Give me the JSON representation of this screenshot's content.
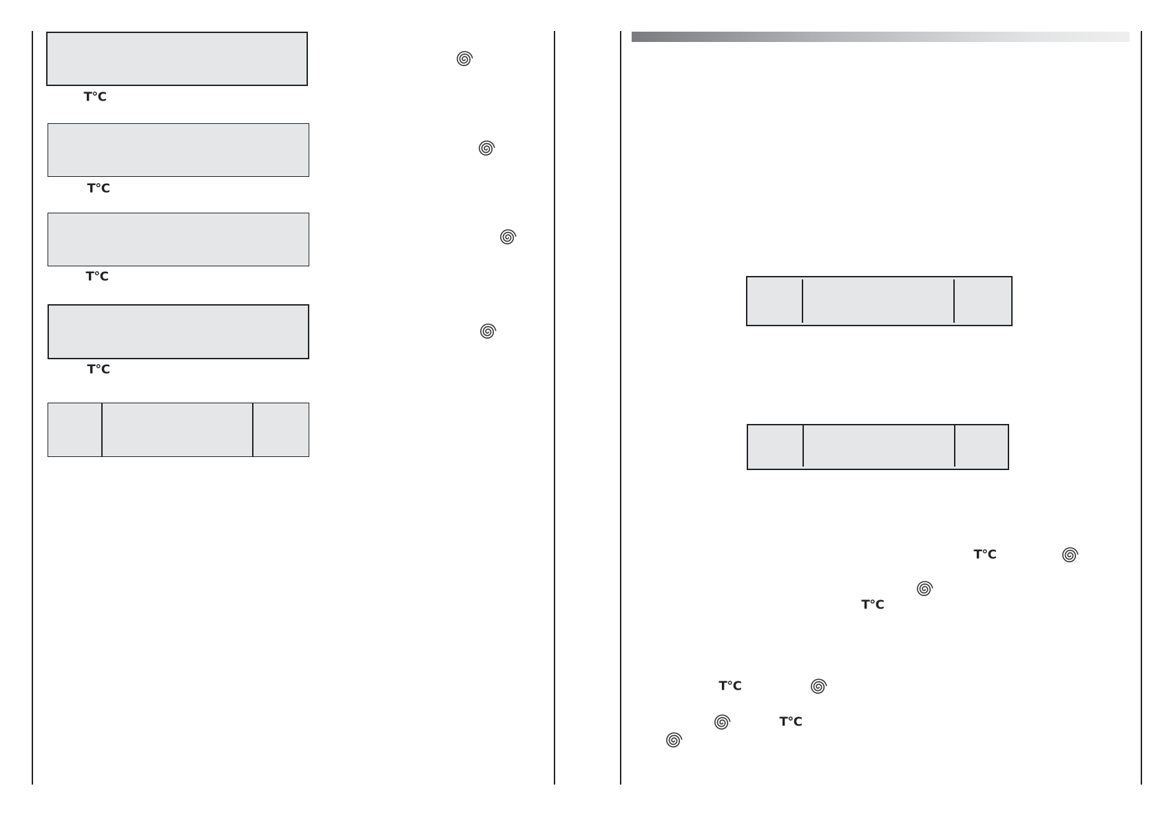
{
  "symbols": {
    "temperature_label": "T°C",
    "spin_icon": "spiral-icon"
  },
  "colors": {
    "panel_fill": "#e5e6e7",
    "line": "#222222",
    "header_bar_start": "#7a7b7e",
    "header_bar_end": "#efefef"
  }
}
